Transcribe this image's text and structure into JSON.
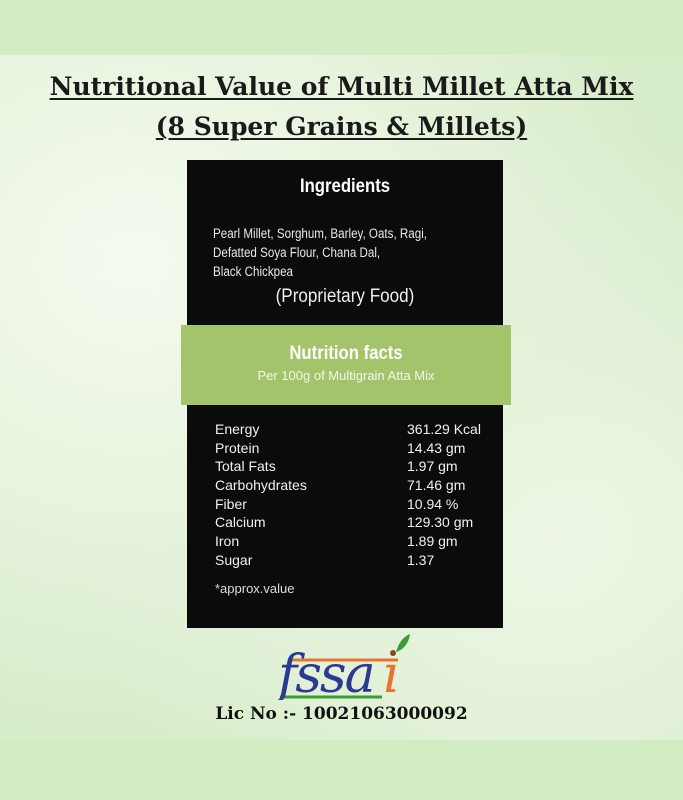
{
  "title_line1": "Nutritional Value of Multi Millet Atta Mix",
  "title_line2": "(8 Super Grains & Millets)",
  "ingredients": {
    "heading": "Ingredients",
    "lines": [
      "Pearl Millet, Sorghum, Barley, Oats, Ragi,",
      "Defatted Soya Flour, Chana Dal,",
      "Black Chickpea"
    ],
    "note": "(Proprietary Food)"
  },
  "nutrition": {
    "heading": "Nutrition facts",
    "subheading": "Per 100g of Multigrain Atta Mix",
    "rows": [
      {
        "name": "Energy",
        "value": "361.29 Kcal"
      },
      {
        "name": "Protein",
        "value": "14.43 gm"
      },
      {
        "name": "Total Fats",
        "value": "1.97 gm"
      },
      {
        "name": "Carbohydrates",
        "value": "71.46 gm"
      },
      {
        "name": "Fiber",
        "value": "10.94 %"
      },
      {
        "name": "Calcium",
        "value": "129.30 gm"
      },
      {
        "name": "Iron",
        "value": "1.89 gm"
      },
      {
        "name": "Sugar",
        "value": "1.37"
      }
    ],
    "footnote": "*approx.value"
  },
  "logo": {
    "text": "fssai",
    "colors": {
      "blue": "#2a3a93",
      "orange": "#e8742b",
      "green": "#3d9b35"
    }
  },
  "license": "Lic No :- 10021063000092"
}
